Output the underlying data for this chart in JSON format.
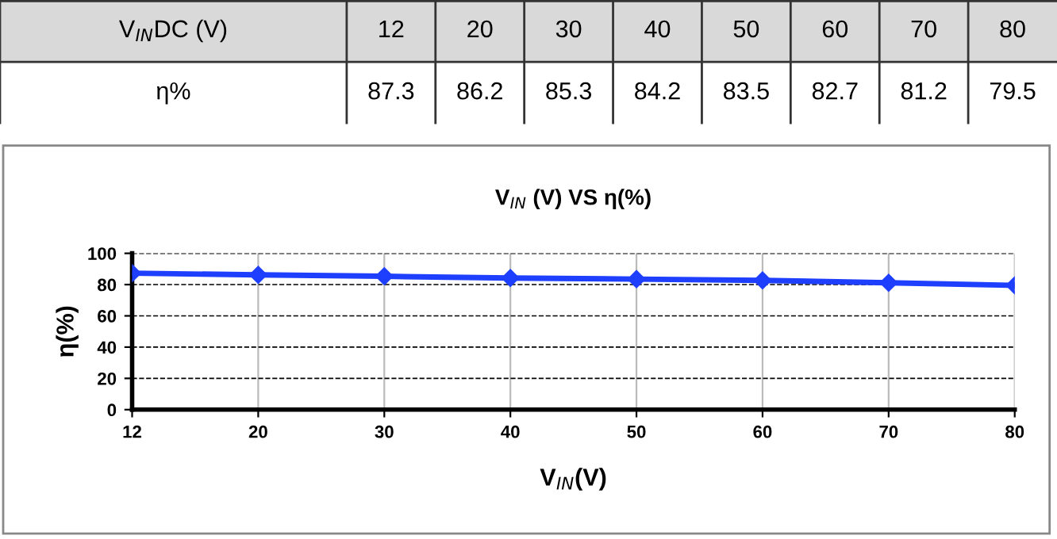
{
  "chart_data": [
    {
      "type": "other",
      "categories": [
        "12",
        "20",
        "30",
        "40",
        "50",
        "60",
        "70",
        "80"
      ],
      "values": [
        87.3,
        86.2,
        85.3,
        84.2,
        83.5,
        82.7,
        81.2,
        79.5
      ],
      "data_labels": true,
      "annotations": [
        "V$_{IN}$DC (V)",
        "η%"
      ]
    },
    {
      "type": "line",
      "title": "V$_{IN}$ (V) VS η(%)",
      "xlabel": "V$_{IN}$(V)",
      "ylabel": "η(%)",
      "categories": [
        "12",
        "20",
        "30",
        "40",
        "50",
        "60",
        "70",
        "80"
      ],
      "series": [
        {
          "color": "#1f3fff",
          "values": [
            87.3,
            86.2,
            85.3,
            84.2,
            83.5,
            82.7,
            81.2,
            79.5
          ]
        }
      ],
      "ylim": [
        0,
        100
      ],
      "yticks": [
        0,
        20,
        40,
        60,
        80,
        100
      ],
      "grid": true,
      "marker": "diamond",
      "line_style": "solid"
    }
  ]
}
